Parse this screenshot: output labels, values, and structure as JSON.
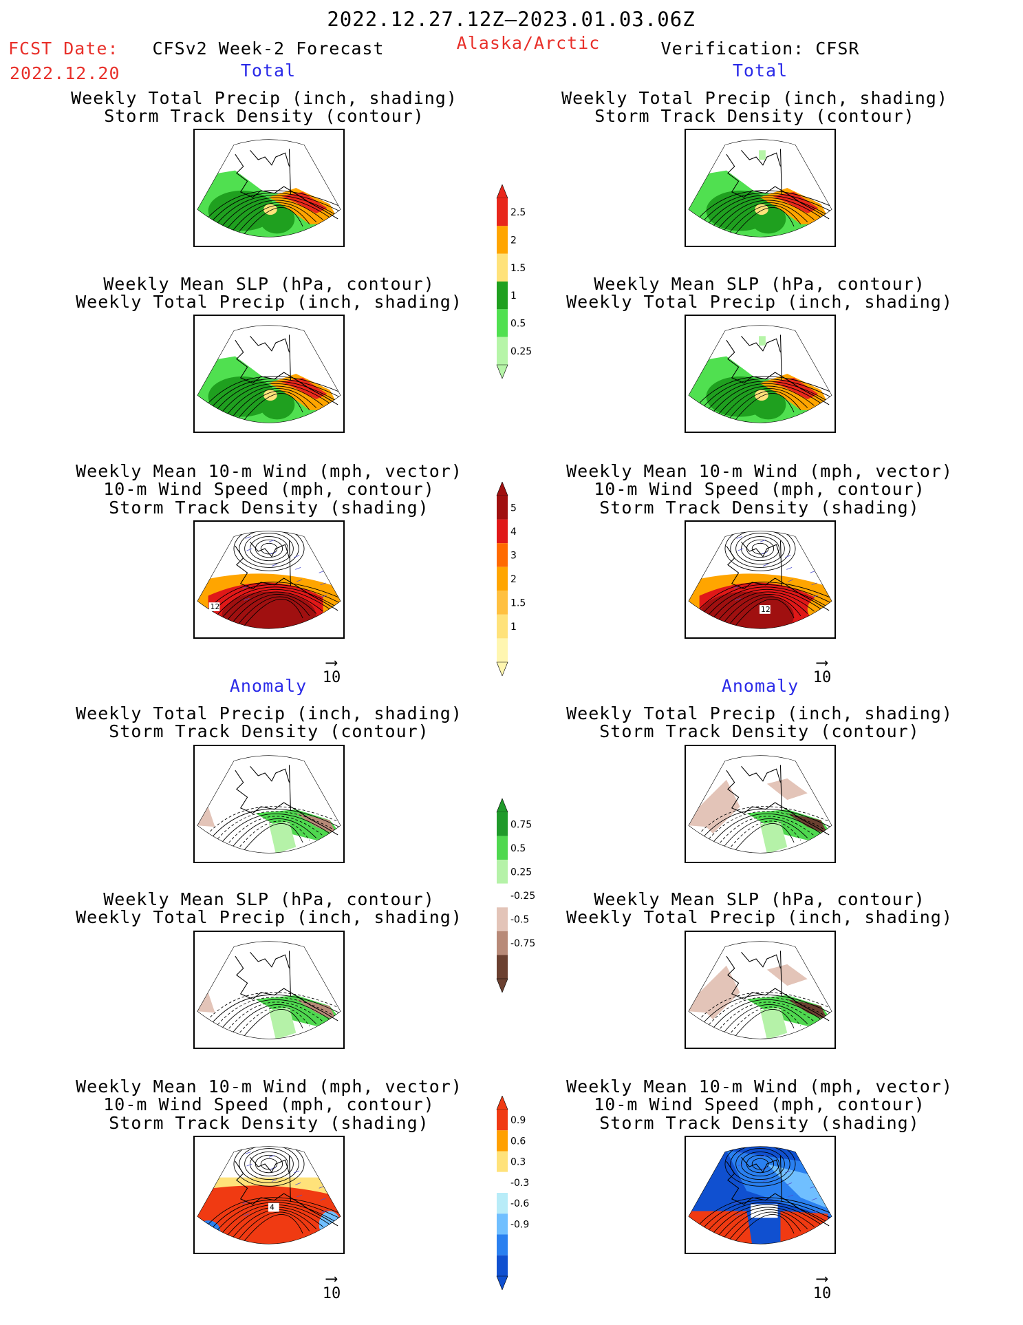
{
  "header": {
    "period": "2022.12.27.12Z–2023.01.03.06Z",
    "fcst_label": "FCST Date:",
    "fcst_date": "2022.12.20",
    "forecast_label": "CFSv2 Week-2 Forecast",
    "region": "Alaska/Arctic",
    "verification_label": "Verification: CFSR"
  },
  "sections": {
    "total": "Total",
    "anomaly": "Anomaly"
  },
  "titles": {
    "precip_storm": [
      "Weekly Total Precip (inch, shading)",
      "Storm Track Density (contour)"
    ],
    "slp_precip": [
      "Weekly Mean SLP (hPa, contour)",
      "Weekly Total Precip (inch, shading)"
    ],
    "wind_storm": [
      "Weekly Mean 10-m Wind (mph, vector)",
      "10-m Wind Speed (mph, contour)",
      "Storm Track Density (shading)"
    ]
  },
  "vector_ref": "10",
  "contour_labels": [
    "12",
    "12",
    "4"
  ],
  "colorbars": [
    {
      "id": "precip-total",
      "labels": [
        "2.5",
        "2",
        "1.5",
        "1",
        "0.5",
        "0.25"
      ],
      "colors": [
        "#e8271b",
        "#ffa500",
        "#ffe27a",
        "#1fa01f",
        "#50e050",
        "#b6f5a8"
      ]
    },
    {
      "id": "storm-total",
      "labels": [
        "5",
        "4",
        "3",
        "2",
        "1.5",
        "1"
      ],
      "colors": [
        "#a01010",
        "#e01818",
        "#ff6a00",
        "#ffa500",
        "#ffc040",
        "#ffe27a",
        "#fff6b0"
      ]
    },
    {
      "id": "precip-anom",
      "labels": [
        "0.75",
        "0.5",
        "0.25",
        "-0.25",
        "-0.5",
        "-0.75"
      ],
      "colors": [
        "#1f9a2a",
        "#4fd84f",
        "#b5f2a8",
        "#ffffff",
        "#e3c4b8",
        "#b88a78",
        "#6b4030"
      ]
    },
    {
      "id": "storm-anom",
      "labels": [
        "0.9",
        "0.6",
        "0.3",
        "-0.3",
        "-0.6",
        "-0.9"
      ],
      "colors": [
        "#f03a12",
        "#ffa000",
        "#ffe27a",
        "#ffffff",
        "#b8ecf8",
        "#70bfff",
        "#2a80f0",
        "#1050d0"
      ]
    }
  ]
}
